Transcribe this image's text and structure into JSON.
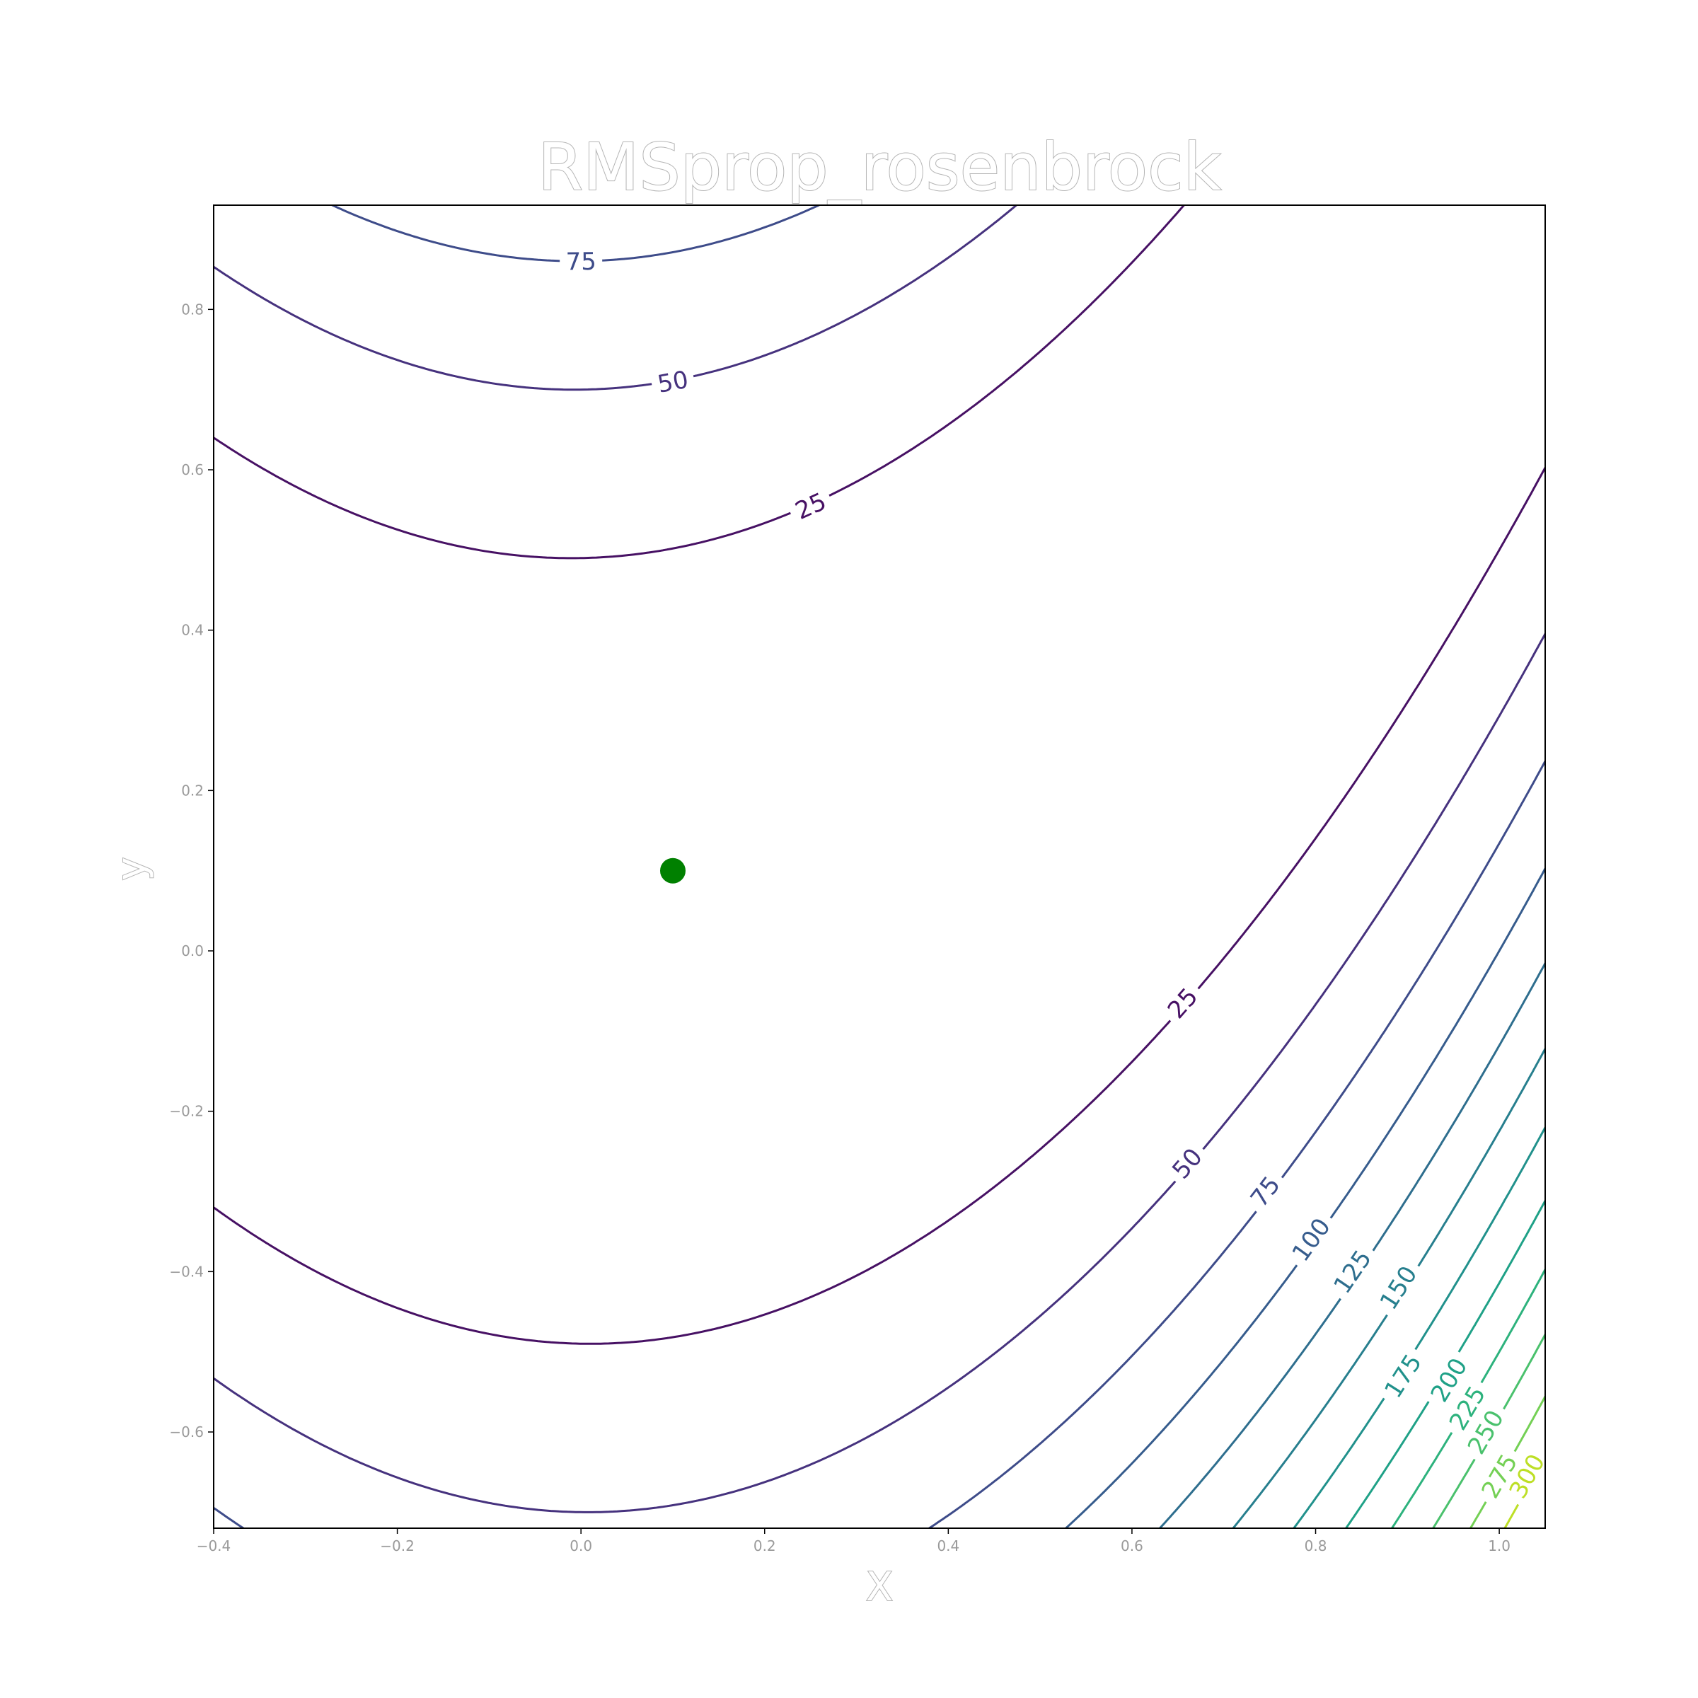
{
  "chart_data": {
    "type": "contour",
    "title": "RMSprop_rosenbrock",
    "xlabel": "X",
    "ylabel": "y",
    "function": "rosenbrock",
    "xlim": [
      -0.4,
      1.05
    ],
    "ylim": [
      -0.72,
      0.93
    ],
    "xticks": [
      "−0.4",
      "−0.2",
      "0.0",
      "0.2",
      "0.4",
      "0.6",
      "0.8",
      "1.0"
    ],
    "xtick_values": [
      -0.4,
      -0.2,
      0.0,
      0.2,
      0.4,
      0.6,
      0.8,
      1.0
    ],
    "yticks": [
      "−0.6",
      "−0.4",
      "−0.2",
      "0.0",
      "0.2",
      "0.4",
      "0.6",
      "0.8"
    ],
    "ytick_values": [
      -0.6,
      -0.4,
      -0.2,
      0.0,
      0.2,
      0.4,
      0.6,
      0.8
    ],
    "levels": [
      25,
      50,
      75,
      100,
      125,
      150,
      175,
      200,
      225,
      250,
      275,
      300
    ],
    "level_labels": [
      "25",
      "50",
      "75",
      "100",
      "125",
      "150",
      "175",
      "200",
      "225",
      "250",
      "275",
      "300"
    ],
    "level_colors": [
      "#471164",
      "#46327e",
      "#3e4c8a",
      "#365c8d",
      "#2e6e8e",
      "#277f8e",
      "#21918c",
      "#1fa187",
      "#2db27d",
      "#4ac16d",
      "#74d055",
      "#bddf26"
    ],
    "label_positions": [
      {
        "level": 75,
        "x": 0.0,
        "y": 0.86
      },
      {
        "level": 50,
        "x": 0.1,
        "y": 0.71
      },
      {
        "level": 25,
        "x": 0.25,
        "y": 0.555
      },
      {
        "level": 25,
        "x": 0.655,
        "y": -0.065
      },
      {
        "level": 50,
        "x": 0.66,
        "y": -0.265
      },
      {
        "level": 75,
        "x": 0.745,
        "y": -0.3
      },
      {
        "level": 100,
        "x": 0.795,
        "y": -0.36
      },
      {
        "level": 125,
        "x": 0.84,
        "y": -0.4
      },
      {
        "level": 150,
        "x": 0.89,
        "y": -0.42
      },
      {
        "level": 175,
        "x": 0.895,
        "y": -0.53
      },
      {
        "level": 200,
        "x": 0.945,
        "y": -0.535
      },
      {
        "level": 225,
        "x": 0.965,
        "y": -0.57
      },
      {
        "level": 250,
        "x": 0.985,
        "y": -0.6
      },
      {
        "level": 275,
        "x": 1.0,
        "y": -0.655
      },
      {
        "level": 300,
        "x": 1.03,
        "y": -0.655
      }
    ],
    "points": [
      {
        "x": 0.1,
        "y": 0.1,
        "color": "#008000"
      }
    ]
  }
}
